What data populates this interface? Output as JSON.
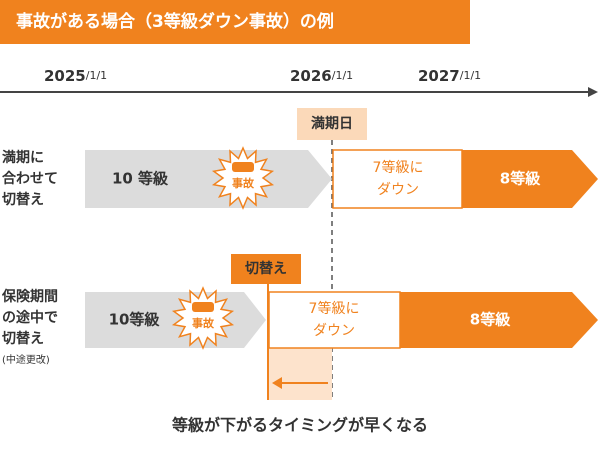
{
  "title": "事故がある場合（3等級ダウン事故）の例",
  "timeline": {
    "dates": [
      {
        "year": "2025",
        "rest": "/1/1"
      },
      {
        "year": "2026",
        "rest": "/1/1"
      },
      {
        "year": "2027",
        "rest": "/1/1"
      }
    ]
  },
  "markers": {
    "expiry": "満期日",
    "switch": "切替え"
  },
  "rows": [
    {
      "label": [
        "満期に",
        "合わせて",
        "切替え"
      ],
      "grade_before": "10 等級",
      "accident": "事故",
      "grade_down": [
        "7等級に",
        "ダウン"
      ],
      "grade_after": "8等級"
    },
    {
      "label": [
        "保険期間",
        "の途中で",
        "切替え"
      ],
      "note": "(中途更改)",
      "grade_before": "10等級",
      "accident": "事故",
      "grade_down": [
        "7等級に",
        "ダウン"
      ],
      "grade_after": "8等級"
    }
  ],
  "footer": "等級が下がるタイミングが早くなる"
}
